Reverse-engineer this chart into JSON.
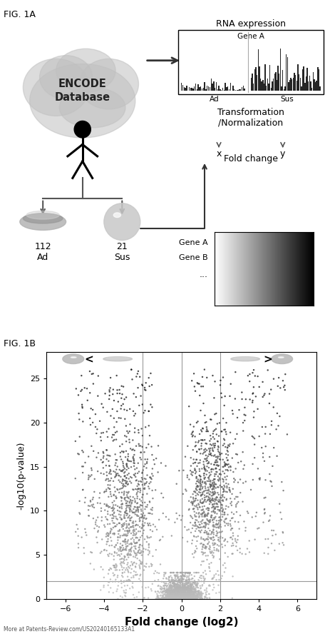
{
  "fig_label_1a": "FIG. 1A",
  "fig_label_1b": "FIG. 1B",
  "encode_text": "ENCODE\nDatabase",
  "rna_title": "RNA expression",
  "gene_a_label": "Gene A",
  "ad_label": "Ad",
  "sus_label": "Sus",
  "transform_text": "Transformation\n/Normalization",
  "x_label": "x",
  "y_label_fc": "y",
  "fold_change_text": "Fold change",
  "gene_a_row": "Gene A",
  "gene_b_row": "Gene B",
  "n_ad": "112\nAd",
  "n_sus": "21\nSus",
  "volcano_xlabel": "Fold change (log2)",
  "volcano_ylabel": "-log10(p-value)",
  "volcano_xlim": [
    -7,
    7
  ],
  "volcano_ylim": [
    0,
    28
  ],
  "volcano_xticks": [
    -6,
    -4,
    -2,
    0,
    2,
    4,
    6
  ],
  "volcano_yticks": [
    0,
    5,
    10,
    15,
    20,
    25
  ],
  "vline1": -2,
  "vline2": 0,
  "vline3": 2,
  "hline": 2,
  "watermark": "More at Patents-Review.com/US20240165133A1",
  "cloud_color": "#c0c0c0",
  "arrow_color": "#444444",
  "cell_gray": "#aaaaaa",
  "sphere_gray": "#cccccc"
}
